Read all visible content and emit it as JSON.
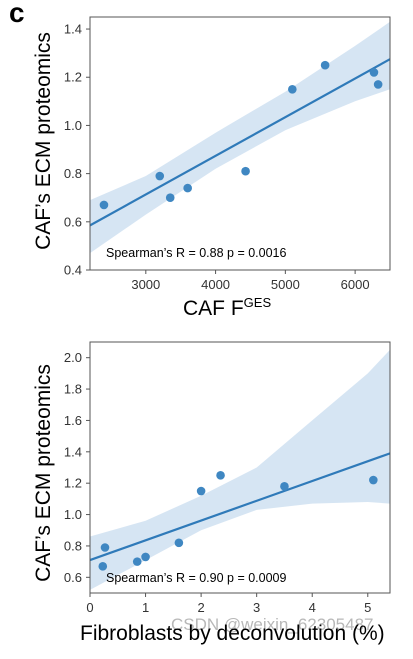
{
  "panel_letter": "c",
  "watermark": "CSDN @weixin_62305487",
  "colors": {
    "line": "#2f7ab9",
    "band": "#cfe0f1",
    "point": "#3f87c2",
    "axis": "#555555"
  },
  "chart_data": [
    {
      "type": "scatter",
      "xlabel_main": "CAF F",
      "xlabel_sup": "GES",
      "ylabel": "CAF’s ECM proteomics",
      "xlim": [
        2200,
        6500
      ],
      "ylim": [
        0.4,
        1.45
      ],
      "xticks": [
        3000,
        4000,
        5000,
        6000
      ],
      "yticks": [
        0.4,
        0.6,
        0.8,
        1.0,
        1.2,
        1.4
      ],
      "xtick_labels": [
        "3000",
        "4000",
        "5000",
        "6000"
      ],
      "ytick_labels": [
        "0.4",
        "0.6",
        "0.8",
        "1.0",
        "1.2",
        "1.4"
      ],
      "points": [
        {
          "x": 2400,
          "y": 0.67
        },
        {
          "x": 3200,
          "y": 0.79
        },
        {
          "x": 3350,
          "y": 0.7
        },
        {
          "x": 3600,
          "y": 0.74
        },
        {
          "x": 4430,
          "y": 0.81
        },
        {
          "x": 5100,
          "y": 1.15
        },
        {
          "x": 5570,
          "y": 1.25
        },
        {
          "x": 6270,
          "y": 1.22
        },
        {
          "x": 6330,
          "y": 1.17
        }
      ],
      "fit": {
        "x": [
          2200,
          6500
        ],
        "y": [
          0.585,
          1.275
        ]
      },
      "ci_upper": {
        "x": [
          2200,
          3000,
          4000,
          5000,
          6000,
          6500
        ],
        "y": [
          0.69,
          0.79,
          0.97,
          1.14,
          1.33,
          1.43
        ]
      },
      "ci_lower": {
        "x": [
          2200,
          3000,
          4000,
          5000,
          6000,
          6500
        ],
        "y": [
          0.47,
          0.63,
          0.82,
          0.98,
          1.1,
          1.15
        ]
      },
      "annotation": "Spearman’s R = 0.88 p = 0.0016",
      "grid": false
    },
    {
      "type": "scatter",
      "xlabel": "Fibroblasts by deconvolution (%)",
      "ylabel": "CAF’s ECM proteomics",
      "xlim": [
        0,
        5.4
      ],
      "ylim": [
        0.5,
        2.1
      ],
      "xticks": [
        0,
        1,
        2,
        3,
        4,
        5
      ],
      "yticks": [
        0.6,
        0.8,
        1.0,
        1.2,
        1.4,
        1.6,
        1.8,
        2.0
      ],
      "xtick_labels": [
        "0",
        "1",
        "2",
        "3",
        "4",
        "5"
      ],
      "ytick_labels": [
        "0.6",
        "0.8",
        "1.0",
        "1.2",
        "1.4",
        "1.6",
        "1.8",
        "2.0"
      ],
      "points": [
        {
          "x": 0.23,
          "y": 0.67
        },
        {
          "x": 0.27,
          "y": 0.79
        },
        {
          "x": 0.85,
          "y": 0.7
        },
        {
          "x": 1.0,
          "y": 0.73
        },
        {
          "x": 1.6,
          "y": 0.82
        },
        {
          "x": 2.0,
          "y": 1.15
        },
        {
          "x": 2.35,
          "y": 1.25
        },
        {
          "x": 3.5,
          "y": 1.18
        },
        {
          "x": 5.1,
          "y": 1.22
        }
      ],
      "fit": {
        "x": [
          0,
          5.4
        ],
        "y": [
          0.71,
          1.39
        ]
      },
      "ci_upper": {
        "x": [
          0,
          1,
          2,
          3,
          4,
          5,
          5.4
        ],
        "y": [
          0.86,
          0.96,
          1.12,
          1.3,
          1.6,
          1.9,
          2.05
        ]
      },
      "ci_lower": {
        "x": [
          0,
          1,
          2,
          3,
          4,
          5,
          5.4
        ],
        "y": [
          0.52,
          0.71,
          0.9,
          1.03,
          1.07,
          1.08,
          1.07
        ]
      },
      "annotation": "Spearman’s R = 0.90 p = 0.0009",
      "grid": false
    }
  ]
}
